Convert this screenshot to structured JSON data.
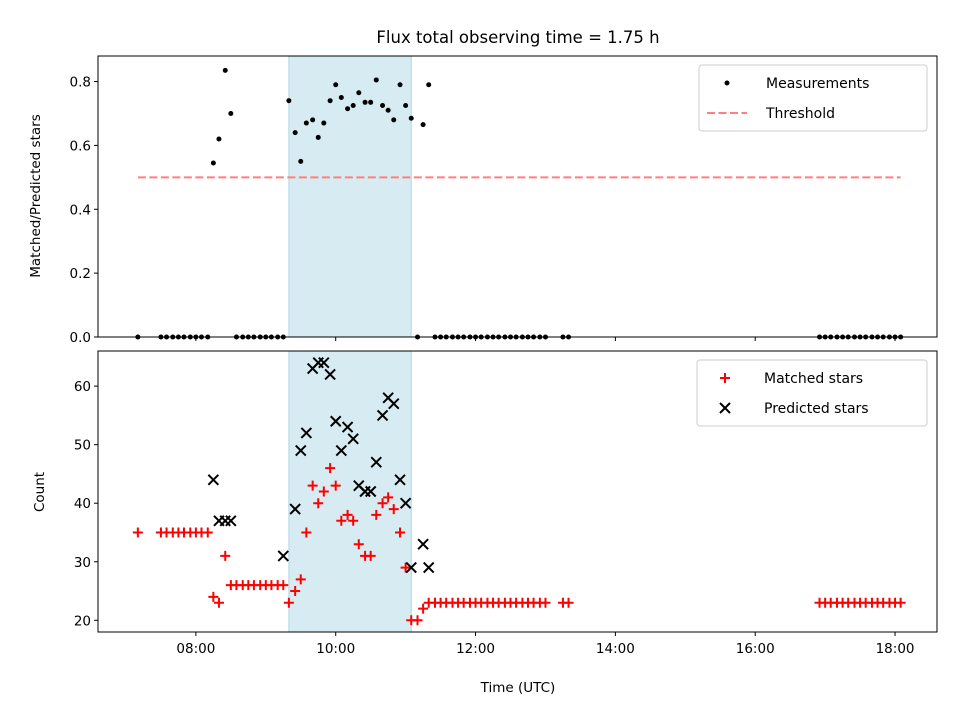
{
  "chart_data": {
    "title": "Flux total observing time = 1.75 h",
    "xlabel": "Time (UTC)",
    "x_unit": "hours",
    "xlim": [
      6.6,
      18.6
    ],
    "x_ticks": [
      {
        "value": 8,
        "label": "08:00"
      },
      {
        "value": 10,
        "label": "10:00"
      },
      {
        "value": 12,
        "label": "12:00"
      },
      {
        "value": 14,
        "label": "14:00"
      },
      {
        "value": 16,
        "label": "16:00"
      },
      {
        "value": 18,
        "label": "18:00"
      }
    ],
    "highlight": {
      "x0": 9.33,
      "x1": 11.08,
      "color": "#add8e6"
    },
    "panels": [
      {
        "type": "scatter",
        "ylabel": "Matched/Predicted stars",
        "ylim": [
          0,
          0.88
        ],
        "y_ticks": [
          {
            "value": 0.0,
            "label": "0.0"
          },
          {
            "value": 0.2,
            "label": "0.2"
          },
          {
            "value": 0.4,
            "label": "0.4"
          },
          {
            "value": 0.6,
            "label": "0.6"
          },
          {
            "value": 0.8,
            "label": "0.8"
          }
        ],
        "legend_position": "top-right",
        "series": [
          {
            "name": "Measurements",
            "marker": "dot",
            "color": "#000000",
            "points": [
              [
                7.17,
                0
              ],
              [
                7.5,
                0
              ],
              [
                7.58,
                0
              ],
              [
                7.67,
                0
              ],
              [
                7.75,
                0
              ],
              [
                7.83,
                0
              ],
              [
                7.92,
                0
              ],
              [
                8.0,
                0
              ],
              [
                8.08,
                0
              ],
              [
                8.17,
                0
              ],
              [
                8.25,
                0.545
              ],
              [
                8.33,
                0.62
              ],
              [
                8.42,
                0.835
              ],
              [
                8.5,
                0.7
              ],
              [
                8.58,
                0
              ],
              [
                8.67,
                0
              ],
              [
                8.75,
                0
              ],
              [
                8.83,
                0
              ],
              [
                8.92,
                0
              ],
              [
                9.0,
                0
              ],
              [
                9.08,
                0
              ],
              [
                9.17,
                0
              ],
              [
                9.25,
                0
              ],
              [
                9.33,
                0.74
              ],
              [
                9.42,
                0.64
              ],
              [
                9.5,
                0.55
              ],
              [
                9.58,
                0.67
              ],
              [
                9.67,
                0.68
              ],
              [
                9.75,
                0.625
              ],
              [
                9.83,
                0.67
              ],
              [
                9.92,
                0.74
              ],
              [
                10.0,
                0.79
              ],
              [
                10.08,
                0.75
              ],
              [
                10.17,
                0.715
              ],
              [
                10.25,
                0.725
              ],
              [
                10.33,
                0.765
              ],
              [
                10.42,
                0.735
              ],
              [
                10.5,
                0.735
              ],
              [
                10.58,
                0.805
              ],
              [
                10.67,
                0.725
              ],
              [
                10.75,
                0.71
              ],
              [
                10.83,
                0.68
              ],
              [
                10.92,
                0.79
              ],
              [
                11.0,
                0.725
              ],
              [
                11.08,
                0.685
              ],
              [
                11.17,
                0
              ],
              [
                11.25,
                0.665
              ],
              [
                11.33,
                0.79
              ],
              [
                11.42,
                0
              ],
              [
                11.5,
                0
              ],
              [
                11.58,
                0
              ],
              [
                11.67,
                0
              ],
              [
                11.75,
                0
              ],
              [
                11.83,
                0
              ],
              [
                11.92,
                0
              ],
              [
                12.0,
                0
              ],
              [
                12.08,
                0
              ],
              [
                12.17,
                0
              ],
              [
                12.25,
                0
              ],
              [
                12.33,
                0
              ],
              [
                12.42,
                0
              ],
              [
                12.5,
                0
              ],
              [
                12.58,
                0
              ],
              [
                12.67,
                0
              ],
              [
                12.75,
                0
              ],
              [
                12.83,
                0
              ],
              [
                12.92,
                0
              ],
              [
                13.0,
                0
              ],
              [
                13.25,
                0
              ],
              [
                13.33,
                0
              ],
              [
                16.92,
                0
              ],
              [
                17.0,
                0
              ],
              [
                17.08,
                0
              ],
              [
                17.17,
                0
              ],
              [
                17.25,
                0
              ],
              [
                17.33,
                0
              ],
              [
                17.42,
                0
              ],
              [
                17.5,
                0
              ],
              [
                17.58,
                0
              ],
              [
                17.67,
                0
              ],
              [
                17.75,
                0
              ],
              [
                17.83,
                0
              ],
              [
                17.92,
                0
              ],
              [
                18.0,
                0
              ],
              [
                18.08,
                0
              ]
            ]
          },
          {
            "name": "Threshold",
            "marker": "dashed-line",
            "color": "#ff7f7f",
            "points": [
              [
                7.17,
                0.5
              ],
              [
                18.08,
                0.5
              ]
            ]
          }
        ]
      },
      {
        "type": "scatter",
        "ylabel": "Count",
        "ylim": [
          18,
          66
        ],
        "y_ticks": [
          {
            "value": 20,
            "label": "20"
          },
          {
            "value": 30,
            "label": "30"
          },
          {
            "value": 40,
            "label": "40"
          },
          {
            "value": 50,
            "label": "50"
          },
          {
            "value": 60,
            "label": "60"
          }
        ],
        "legend_position": "top-right",
        "series": [
          {
            "name": "Matched stars",
            "marker": "plus",
            "color": "#ff0000",
            "points": [
              [
                7.17,
                35
              ],
              [
                7.5,
                35
              ],
              [
                7.58,
                35
              ],
              [
                7.67,
                35
              ],
              [
                7.75,
                35
              ],
              [
                7.83,
                35
              ],
              [
                7.92,
                35
              ],
              [
                8.0,
                35
              ],
              [
                8.08,
                35
              ],
              [
                8.17,
                35
              ],
              [
                8.25,
                24
              ],
              [
                8.33,
                23
              ],
              [
                8.42,
                31
              ],
              [
                8.5,
                26
              ],
              [
                8.58,
                26
              ],
              [
                8.67,
                26
              ],
              [
                8.75,
                26
              ],
              [
                8.83,
                26
              ],
              [
                8.92,
                26
              ],
              [
                9.0,
                26
              ],
              [
                9.08,
                26
              ],
              [
                9.17,
                26
              ],
              [
                9.25,
                26
              ],
              [
                9.33,
                23
              ],
              [
                9.42,
                25
              ],
              [
                9.5,
                27
              ],
              [
                9.58,
                35
              ],
              [
                9.67,
                43
              ],
              [
                9.75,
                40
              ],
              [
                9.83,
                42
              ],
              [
                9.92,
                46
              ],
              [
                10.0,
                43
              ],
              [
                10.08,
                37
              ],
              [
                10.17,
                38
              ],
              [
                10.25,
                37
              ],
              [
                10.33,
                33
              ],
              [
                10.42,
                31
              ],
              [
                10.5,
                31
              ],
              [
                10.58,
                38
              ],
              [
                10.67,
                40
              ],
              [
                10.75,
                41
              ],
              [
                10.83,
                39
              ],
              [
                10.92,
                35
              ],
              [
                11.0,
                29
              ],
              [
                11.08,
                20
              ],
              [
                11.17,
                20
              ],
              [
                11.25,
                22
              ],
              [
                11.33,
                23
              ],
              [
                11.42,
                23
              ],
              [
                11.5,
                23
              ],
              [
                11.58,
                23
              ],
              [
                11.67,
                23
              ],
              [
                11.75,
                23
              ],
              [
                11.83,
                23
              ],
              [
                11.92,
                23
              ],
              [
                12.0,
                23
              ],
              [
                12.08,
                23
              ],
              [
                12.17,
                23
              ],
              [
                12.25,
                23
              ],
              [
                12.33,
                23
              ],
              [
                12.42,
                23
              ],
              [
                12.5,
                23
              ],
              [
                12.58,
                23
              ],
              [
                12.67,
                23
              ],
              [
                12.75,
                23
              ],
              [
                12.83,
                23
              ],
              [
                12.92,
                23
              ],
              [
                13.0,
                23
              ],
              [
                13.25,
                23
              ],
              [
                13.33,
                23
              ],
              [
                16.92,
                23
              ],
              [
                17.0,
                23
              ],
              [
                17.08,
                23
              ],
              [
                17.17,
                23
              ],
              [
                17.25,
                23
              ],
              [
                17.33,
                23
              ],
              [
                17.42,
                23
              ],
              [
                17.5,
                23
              ],
              [
                17.58,
                23
              ],
              [
                17.67,
                23
              ],
              [
                17.75,
                23
              ],
              [
                17.83,
                23
              ],
              [
                17.92,
                23
              ],
              [
                18.0,
                23
              ],
              [
                18.08,
                23
              ]
            ]
          },
          {
            "name": "Predicted stars",
            "marker": "x",
            "color": "#000000",
            "points": [
              [
                8.25,
                44
              ],
              [
                8.33,
                37
              ],
              [
                8.42,
                37
              ],
              [
                8.5,
                37
              ],
              [
                9.25,
                31
              ],
              [
                9.42,
                39
              ],
              [
                9.5,
                49
              ],
              [
                9.58,
                52
              ],
              [
                9.67,
                63
              ],
              [
                9.75,
                64
              ],
              [
                9.83,
                64
              ],
              [
                9.92,
                62
              ],
              [
                10.0,
                54
              ],
              [
                10.08,
                49
              ],
              [
                10.17,
                53
              ],
              [
                10.25,
                51
              ],
              [
                10.33,
                43
              ],
              [
                10.42,
                42
              ],
              [
                10.5,
                42
              ],
              [
                10.58,
                47
              ],
              [
                10.67,
                55
              ],
              [
                10.75,
                58
              ],
              [
                10.83,
                57
              ],
              [
                10.92,
                44
              ],
              [
                11.0,
                40
              ],
              [
                11.08,
                29
              ],
              [
                11.25,
                33
              ],
              [
                11.33,
                29
              ]
            ]
          }
        ]
      }
    ]
  }
}
